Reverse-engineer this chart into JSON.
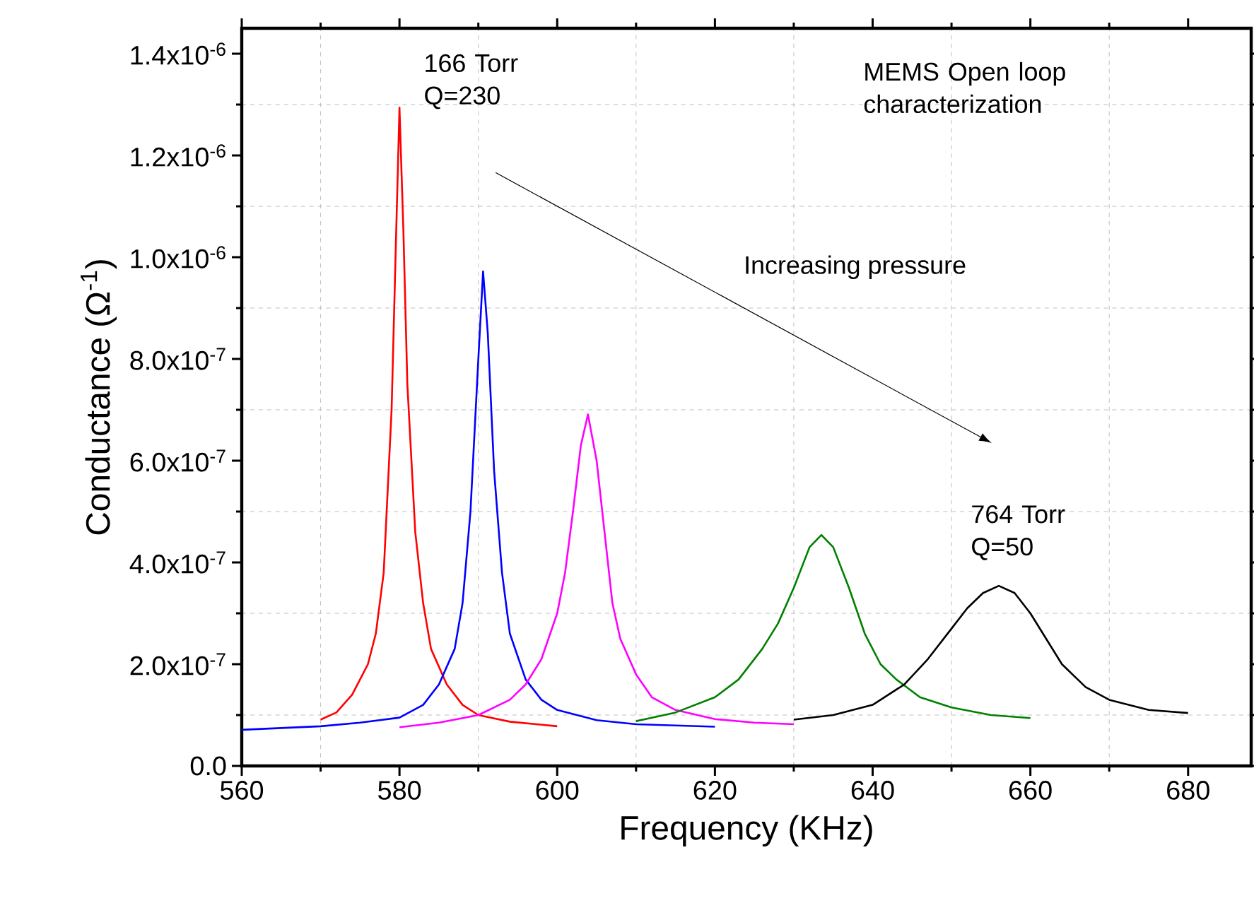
{
  "chart_data": {
    "type": "line",
    "xlabel": "Frequency (KHz)",
    "ylabel": "Conductance (Ω$^{-1}$)",
    "xlim": [
      560,
      688
    ],
    "ylim": [
      0,
      1.45e-06
    ],
    "xticks": [
      560,
      580,
      600,
      620,
      640,
      660,
      680
    ],
    "yticks": [
      {
        "value": 0,
        "label": "0.0"
      },
      {
        "value": 2e-07,
        "label": "2.0x10$^{-7}$"
      },
      {
        "value": 4e-07,
        "label": "4.0x10$^{-7}$"
      },
      {
        "value": 6e-07,
        "label": "6.0x10$^{-7}$"
      },
      {
        "value": 8e-07,
        "label": "8.0x10$^{-7}$"
      },
      {
        "value": 1e-06,
        "label": "1.0x10$^{-6}$"
      },
      {
        "value": 1.2e-06,
        "label": "1.2x10$^{-6}$"
      },
      {
        "value": 1.4e-06,
        "label": "1.4x10$^{-6}$"
      }
    ],
    "grid": true,
    "annotations": [
      {
        "text": "166 Torr Q=230",
        "x": 580,
        "y": 1.294e-06
      },
      {
        "text": "764 Torr Q=50",
        "x": 656,
        "y": 3.54e-07
      },
      "MEMS Open loop characterization",
      "Increasing pressure"
    ],
    "series": [
      {
        "color": "#ff0000",
        "x": [
          570,
          572,
          574,
          576,
          577,
          578,
          579,
          579.5,
          580,
          580.5,
          581,
          582,
          583,
          584,
          586,
          588,
          590,
          594,
          600
        ],
        "values": [
          9.1e-08,
          1.05e-07,
          1.4e-07,
          2e-07,
          2.6e-07,
          3.8e-07,
          7e-07,
          1e-06,
          1.294e-06,
          1.05e-06,
          7.5e-07,
          4.6e-07,
          3.2e-07,
          2.3e-07,
          1.6e-07,
          1.2e-07,
          1e-07,
          8.7e-08,
          7.8e-08
        ]
      },
      {
        "color": "#0000ff",
        "x": [
          560,
          570,
          575,
          580,
          583,
          585,
          587,
          588,
          589,
          590,
          590.6,
          591.2,
          592,
          593,
          594,
          596,
          598,
          600,
          605,
          610,
          620
        ],
        "values": [
          7.1e-08,
          7.8e-08,
          8.5e-08,
          9.5e-08,
          1.2e-07,
          1.6e-07,
          2.3e-07,
          3.2e-07,
          5e-07,
          8e-07,
          9.72e-07,
          8.5e-07,
          5.8e-07,
          3.8e-07,
          2.6e-07,
          1.7e-07,
          1.3e-07,
          1.1e-07,
          9e-08,
          8.2e-08,
          7.7e-08
        ]
      },
      {
        "color": "#ff00ff",
        "x": [
          580,
          585,
          590,
          594,
          596,
          598,
          600,
          601,
          602,
          603,
          603.9,
          605,
          606,
          607,
          608,
          610,
          612,
          615,
          620,
          625,
          630
        ],
        "values": [
          7.6e-08,
          8.5e-08,
          1e-07,
          1.3e-07,
          1.6e-07,
          2.1e-07,
          3e-07,
          3.8e-07,
          5e-07,
          6.3e-07,
          6.91e-07,
          6e-07,
          4.6e-07,
          3.2e-07,
          2.5e-07,
          1.8e-07,
          1.35e-07,
          1.1e-07,
          9.2e-08,
          8.5e-08,
          8.2e-08
        ]
      },
      {
        "color": "#008000",
        "x": [
          610,
          615,
          620,
          623,
          626,
          628,
          630,
          632,
          633.5,
          635,
          637,
          639,
          641,
          643,
          646,
          650,
          655,
          660
        ],
        "values": [
          8.8e-08,
          1.05e-07,
          1.35e-07,
          1.7e-07,
          2.3e-07,
          2.8e-07,
          3.5e-07,
          4.3e-07,
          4.54e-07,
          4.3e-07,
          3.5e-07,
          2.6e-07,
          2e-07,
          1.7e-07,
          1.35e-07,
          1.15e-07,
          1e-07,
          9.4e-08
        ]
      },
      {
        "color": "#000000",
        "x": [
          630,
          635,
          640,
          644,
          647,
          650,
          652,
          654,
          656,
          658,
          660,
          662,
          664,
          667,
          670,
          675,
          680
        ],
        "values": [
          9.1e-08,
          1e-07,
          1.2e-07,
          1.6e-07,
          2.1e-07,
          2.7e-07,
          3.1e-07,
          3.4e-07,
          3.54e-07,
          3.4e-07,
          3e-07,
          2.5e-07,
          2e-07,
          1.55e-07,
          1.3e-07,
          1.1e-07,
          1.04e-07
        ]
      }
    ]
  }
}
